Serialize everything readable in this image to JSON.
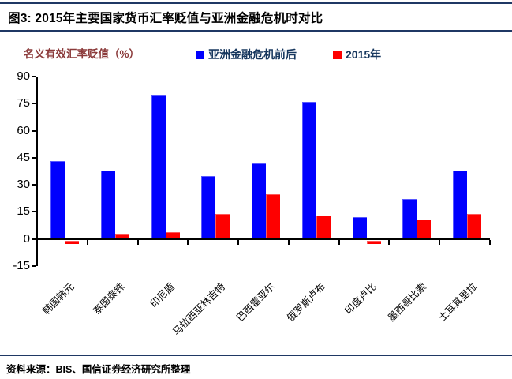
{
  "header": {
    "title": "图3: 2015年主要国家货币汇率贬值与亚洲金融危机时对比"
  },
  "chart_data": {
    "type": "bar",
    "title": "2015年主要国家货币汇率贬值与亚洲金融危机时对比",
    "ylabel": "名义有效汇率贬值（%）",
    "xlabel": "",
    "categories": [
      "韩国韩元",
      "泰国泰铢",
      "印尼盾",
      "马拉西亚林吉特",
      "巴西雷亚尔",
      "俄罗斯卢布",
      "印度卢比",
      "墨西哥比索",
      "土耳其里拉"
    ],
    "series": [
      {
        "name": "亚洲金融危机前后",
        "color": "#0000fe",
        "values": [
          43,
          38,
          80,
          35,
          42,
          76,
          12,
          22,
          38
        ]
      },
      {
        "name": "2015年",
        "color": "#fe0000",
        "values": [
          -2,
          3,
          4,
          14,
          25,
          13,
          -2,
          11,
          14
        ]
      }
    ],
    "ylim": [
      -15,
      90
    ],
    "yticks": [
      90,
      75,
      60,
      45,
      30,
      15,
      0,
      -15
    ],
    "grid": false,
    "legend_position": "top"
  },
  "footer": {
    "source": "资料来源：BIS、国信证券经济研究所整理"
  },
  "colors": {
    "rule": "#1f3864",
    "axis": "#000000",
    "axis_title": "#8b3a3a",
    "legend_text": "#17375e",
    "series_blue": "#0000fe",
    "series_red": "#fe0000"
  }
}
